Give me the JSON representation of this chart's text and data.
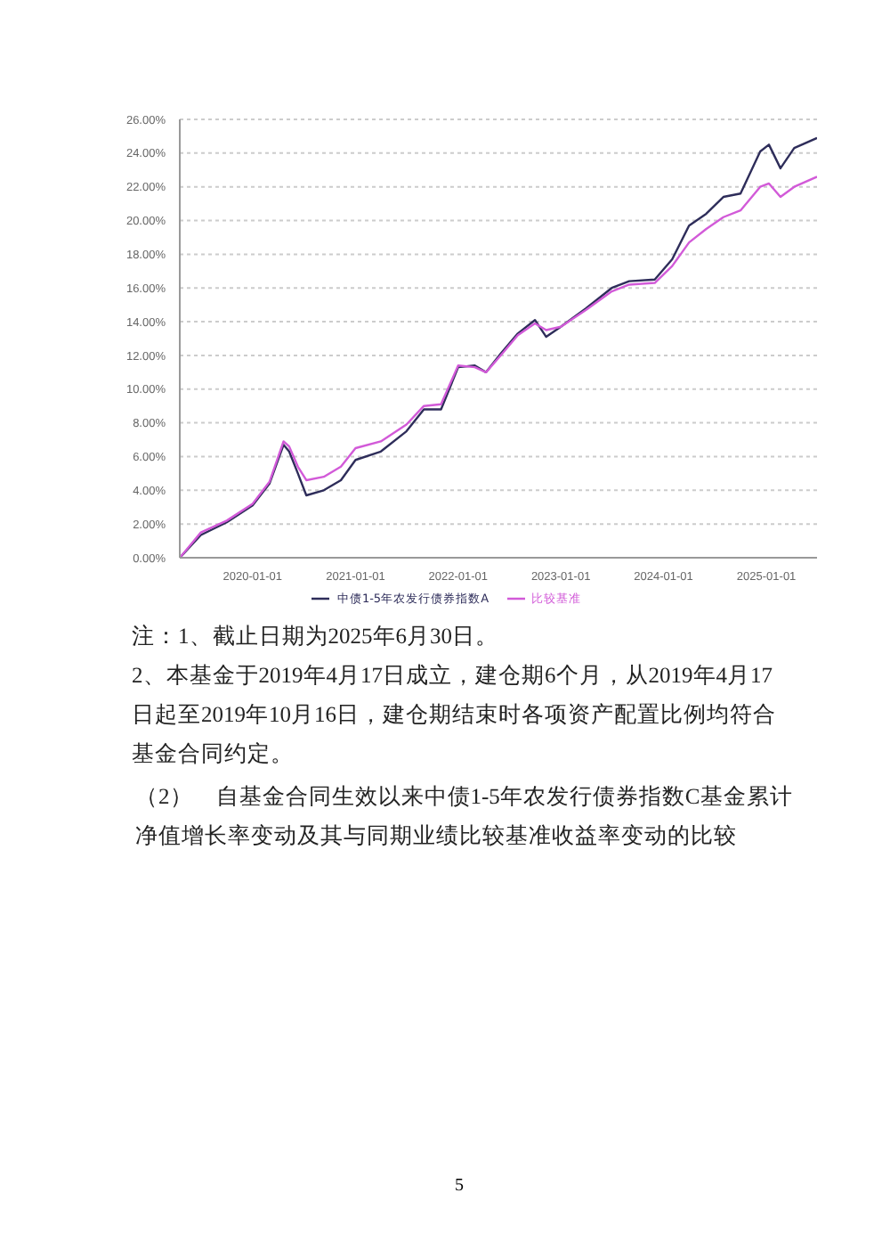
{
  "chart_data": {
    "type": "line",
    "x": [
      "2019-04-17",
      "2019-07-01",
      "2019-10-01",
      "2020-01-01",
      "2020-03-01",
      "2020-04-20",
      "2020-05-10",
      "2020-06-10",
      "2020-07-10",
      "2020-09-10",
      "2020-11-10",
      "2021-01-01",
      "2021-04-01",
      "2021-07-01",
      "2021-09-01",
      "2021-11-01",
      "2022-01-01",
      "2022-03-01",
      "2022-04-10",
      "2022-06-01",
      "2022-08-01",
      "2022-10-01",
      "2022-11-10",
      "2023-01-01",
      "2023-04-01",
      "2023-07-01",
      "2023-09-01",
      "2023-12-01",
      "2024-02-01",
      "2024-04-01",
      "2024-06-01",
      "2024-08-01",
      "2024-10-01",
      "2024-12-10",
      "2025-01-10",
      "2025-02-20",
      "2025-04-10",
      "2025-06-30"
    ],
    "series": [
      {
        "name": "中债1-5年农发行债券指数A",
        "color": "#2e2d5a",
        "values": [
          0,
          1.35,
          2.1,
          3.1,
          4.4,
          6.7,
          6.3,
          5.0,
          3.7,
          4.0,
          4.6,
          5.8,
          6.3,
          7.5,
          8.8,
          8.8,
          11.3,
          11.4,
          11.0,
          12.1,
          13.3,
          14.1,
          13.1,
          13.7,
          14.8,
          16.0,
          16.4,
          16.5,
          17.7,
          19.7,
          20.4,
          21.4,
          21.6,
          24.1,
          24.5,
          23.1,
          24.3,
          24.9
        ]
      },
      {
        "name": "比较基准",
        "color": "#d25ad8",
        "values": [
          0,
          1.5,
          2.2,
          3.2,
          4.5,
          6.9,
          6.6,
          5.4,
          4.6,
          4.8,
          5.4,
          6.5,
          6.9,
          7.9,
          9.0,
          9.1,
          11.4,
          11.3,
          11.0,
          12.0,
          13.2,
          13.9,
          13.5,
          13.7,
          14.7,
          15.8,
          16.2,
          16.3,
          17.3,
          18.7,
          19.5,
          20.2,
          20.6,
          22.0,
          22.2,
          21.4,
          22.0,
          22.6
        ]
      }
    ],
    "xlim": [
      "2019-04-17",
      "2025-06-30"
    ],
    "xticks": [
      "2020-01-01",
      "2021-01-01",
      "2022-01-01",
      "2023-01-01",
      "2024-01-01",
      "2025-01-01"
    ],
    "ylim": [
      0,
      26
    ],
    "yticks": [
      {
        "value": 0,
        "label": "0.00%"
      },
      {
        "value": 2,
        "label": "2.00%"
      },
      {
        "value": 4,
        "label": "4.00%"
      },
      {
        "value": 6,
        "label": "6.00%"
      },
      {
        "value": 8,
        "label": "8.00%"
      },
      {
        "value": 10,
        "label": "10.00%"
      },
      {
        "value": 12,
        "label": "12.00%"
      },
      {
        "value": 14,
        "label": "14.00%"
      },
      {
        "value": 16,
        "label": "16.00%"
      },
      {
        "value": 18,
        "label": "18.00%"
      },
      {
        "value": 20,
        "label": "20.00%"
      },
      {
        "value": 22,
        "label": "22.00%"
      },
      {
        "value": 24,
        "label": "24.00%"
      },
      {
        "value": 26,
        "label": "26.00%"
      }
    ],
    "grid": "y",
    "legend": "bottom",
    "marker": "none",
    "line_style": "solid",
    "annotations": [
      "注：1、截止日期为2025年6月30日。",
      "2、本基金于2019年4月17日成立，建仓期6个月，从2019年4月17日起至2019年10月16日，建仓期结束时各项资产配置比例均符合基金合同约定。",
      "（2）　自基金合同生效以来中债1-5年农发行债券指数C基金累计净值增长率变动及其与同期业绩比较基准收益率变动的比较",
      "5"
    ]
  }
}
